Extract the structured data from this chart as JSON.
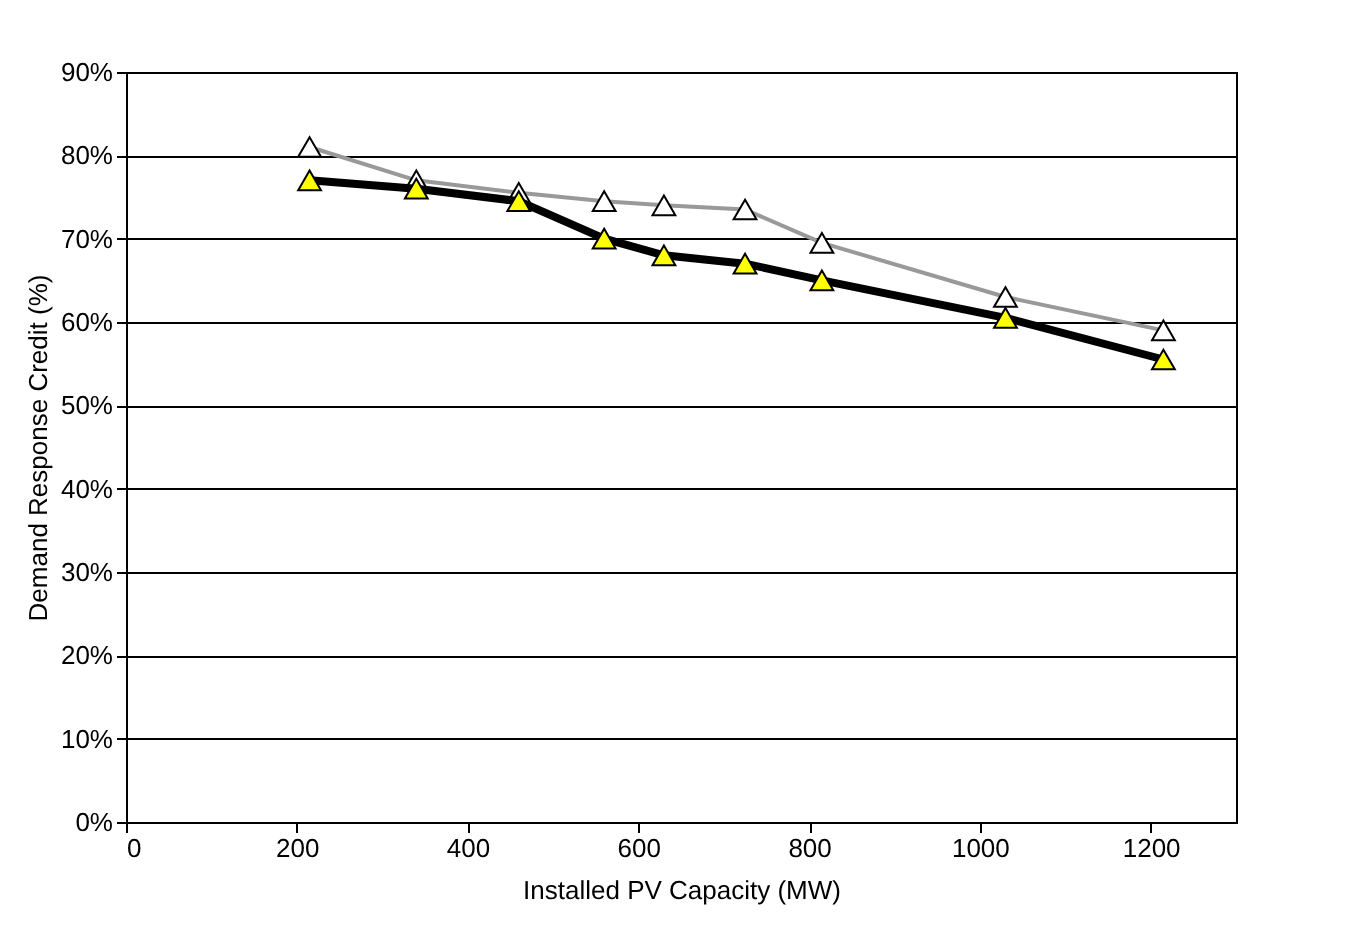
{
  "chart_data": {
    "type": "line",
    "xlabel": "Installed PV Capacity (MW)",
    "ylabel": "Demand Response Credit (%)",
    "x": [
      215,
      340,
      460,
      560,
      630,
      725,
      815,
      1030,
      1215
    ],
    "series": [
      {
        "color": "#999999",
        "values": [
          81,
          77,
          75.5,
          74.5,
          74,
          73.5,
          69.5,
          63,
          59
        ]
      },
      {
        "color": "#000000",
        "values": [
          77,
          76,
          74.5,
          70,
          68,
          67,
          65,
          60.5,
          55.5
        ]
      }
    ],
    "xlim": [
      0,
      1300
    ],
    "xticks": [
      0,
      200,
      400,
      600,
      800,
      1000,
      1200
    ],
    "ylim": [
      0,
      90
    ],
    "yticks": [
      {
        "value": 0,
        "label": "0%"
      },
      {
        "value": 10,
        "label": "10%"
      },
      {
        "value": 20,
        "label": "20%"
      },
      {
        "value": 30,
        "label": "30%"
      },
      {
        "value": 40,
        "label": "40%"
      },
      {
        "value": 50,
        "label": "50%"
      },
      {
        "value": 60,
        "label": "60%"
      },
      {
        "value": 70,
        "label": "70%"
      },
      {
        "value": 80,
        "label": "80%"
      },
      {
        "value": 90,
        "label": "90%"
      }
    ],
    "grid": "y",
    "marker": "triangle",
    "line_style": "solid"
  }
}
